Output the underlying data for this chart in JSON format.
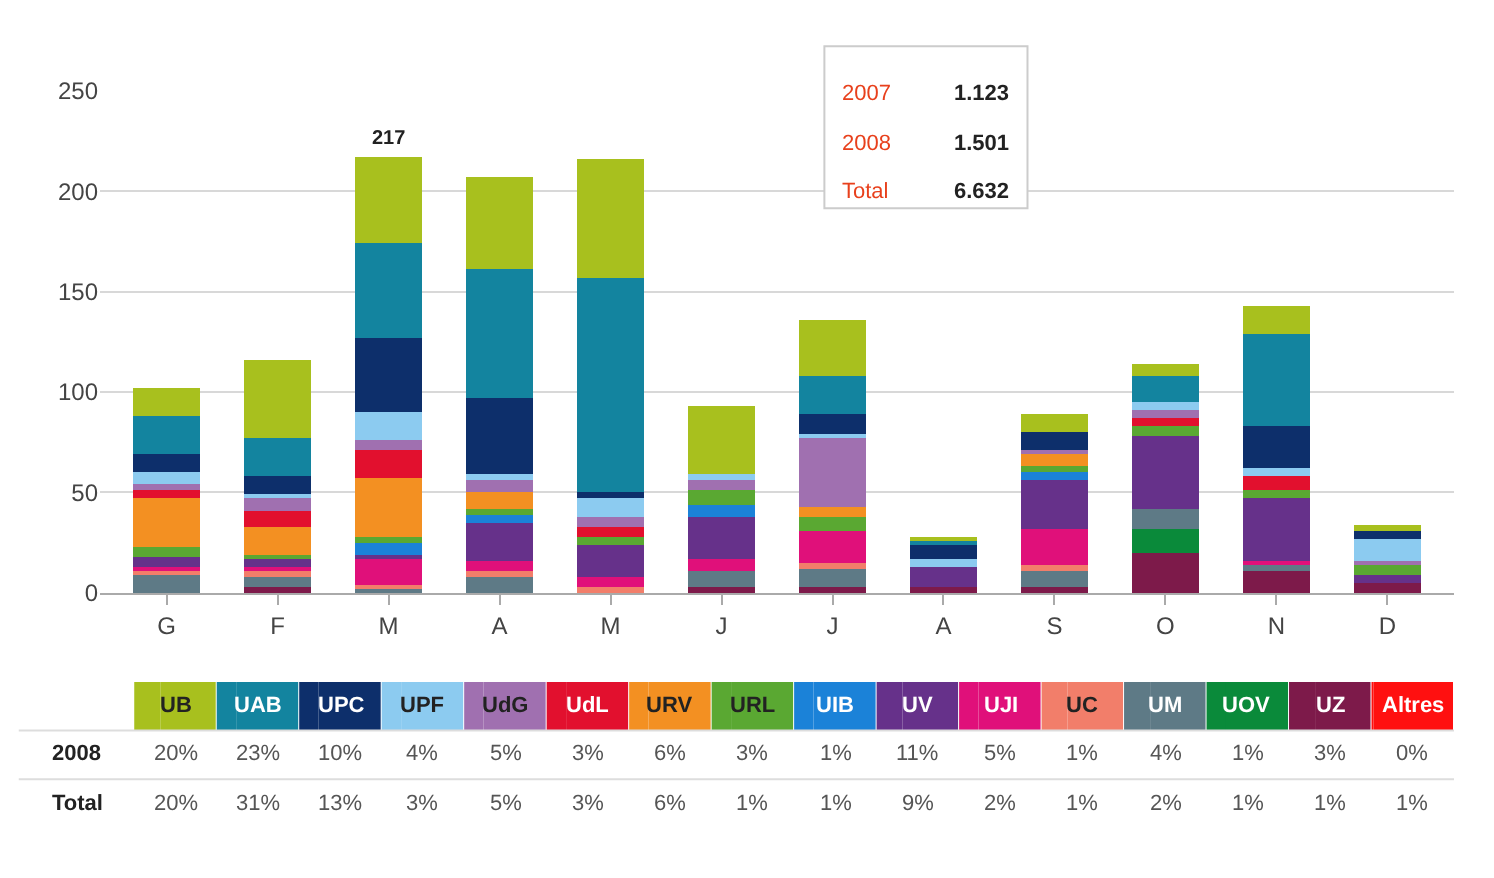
{
  "chart_data": {
    "type": "bar",
    "stacked": true,
    "categories": [
      "G",
      "F",
      "M",
      "A",
      "M",
      "J",
      "J",
      "A",
      "S",
      "O",
      "N",
      "D"
    ],
    "series": [
      {
        "name": "Altres",
        "color": "#ff1010",
        "values": [
          0,
          0,
          0,
          0,
          0,
          0,
          0,
          0,
          0,
          0,
          0,
          0
        ]
      },
      {
        "name": "UZ",
        "color": "#7d1a4a",
        "values": [
          0,
          3,
          0,
          0,
          0,
          3,
          3,
          3,
          3,
          20,
          11,
          5
        ]
      },
      {
        "name": "UOV",
        "color": "#0a8a3a",
        "values": [
          0,
          0,
          0,
          0,
          0,
          0,
          0,
          0,
          0,
          12,
          0,
          0
        ]
      },
      {
        "name": "UM",
        "color": "#5e7a86",
        "values": [
          9,
          5,
          3,
          8,
          0,
          8,
          9,
          0,
          8,
          10,
          3,
          0
        ]
      },
      {
        "name": "UC",
        "color": "#f27e6a",
        "values": [
          2,
          3,
          1,
          3,
          3,
          0,
          3,
          0,
          3,
          0,
          0,
          0
        ]
      },
      {
        "name": "UJI",
        "color": "#e0107a",
        "values": [
          2,
          2,
          13,
          5,
          5,
          6,
          16,
          0,
          18,
          0,
          2,
          0
        ]
      },
      {
        "name": "UV",
        "color": "#66318a",
        "values": [
          5,
          4,
          2,
          19,
          16,
          21,
          0,
          10,
          24,
          36,
          31,
          4
        ]
      },
      {
        "name": "UIB",
        "color": "#1b82d8",
        "values": [
          0,
          0,
          6,
          4,
          0,
          6,
          0,
          0,
          4,
          0,
          0,
          0
        ]
      },
      {
        "name": "URL",
        "color": "#5aa832",
        "values": [
          5,
          2,
          3,
          3,
          4,
          7,
          7,
          0,
          3,
          5,
          4,
          5
        ]
      },
      {
        "name": "URV",
        "color": "#f39022",
        "values": [
          24,
          14,
          29,
          8,
          0,
          0,
          5,
          0,
          6,
          0,
          0,
          0
        ]
      },
      {
        "name": "UdL",
        "color": "#e2102e",
        "values": [
          4,
          8,
          14,
          0,
          5,
          0,
          0,
          0,
          0,
          4,
          7,
          0
        ]
      },
      {
        "name": "UdG",
        "color": "#a070b0",
        "values": [
          3,
          6,
          5,
          6,
          5,
          5,
          34,
          0,
          2,
          4,
          0,
          2
        ]
      },
      {
        "name": "UPF",
        "color": "#8ccbf0",
        "values": [
          6,
          2,
          14,
          3,
          9,
          3,
          2,
          4,
          0,
          4,
          4,
          11
        ]
      },
      {
        "name": "UPC",
        "color": "#0d2f6b",
        "values": [
          9,
          9,
          37,
          38,
          3,
          0,
          10,
          7,
          9,
          0,
          21,
          4
        ]
      },
      {
        "name": "UAB",
        "color": "#13849f",
        "values": [
          19,
          19,
          47,
          64,
          107,
          0,
          19,
          2,
          0,
          13,
          46,
          0
        ]
      },
      {
        "name": "UB",
        "color": "#a8c01e",
        "values": [
          14,
          39,
          43,
          46,
          59,
          34,
          28,
          2,
          9,
          6,
          14,
          3
        ]
      }
    ],
    "totals": [
      null,
      null,
      "217",
      null,
      null,
      null,
      null,
      null,
      null,
      null,
      null,
      null
    ],
    "ylim": [
      0,
      250
    ],
    "legend": "bottom",
    "yticks": [
      0,
      50,
      100,
      150,
      200,
      250
    ],
    "grid": "y",
    "annotations": [
      "2007",
      "1.123",
      "2008",
      "1.501",
      "Total",
      "6.632",
      "2008",
      "20%",
      "23%",
      "10%",
      "4%",
      "5%",
      "3%",
      "6%",
      "3%",
      "1%",
      "11%",
      "5%",
      "1%",
      "4%",
      "1%",
      "3%",
      "0%",
      "Total",
      "20%",
      "31%",
      "13%",
      "3%",
      "5%",
      "3%",
      "6%",
      "1%",
      "1%",
      "9%",
      "2%",
      "1%",
      "2%",
      "1%",
      "1%",
      "1%"
    ]
  }
}
